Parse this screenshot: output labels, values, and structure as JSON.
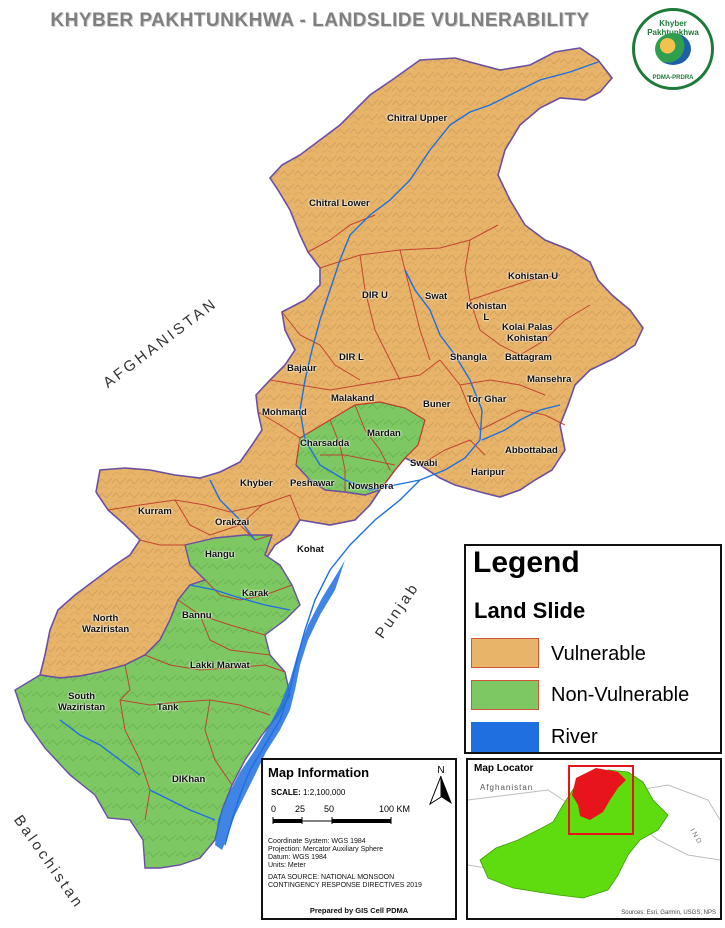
{
  "title": "KHYBER PAKHTUNKHWA - LANDSLIDE VULNERABILITY",
  "logo": {
    "top_text": "Khyber Pakhtunkhwa",
    "bottom_text": "PDMA-PRDRA"
  },
  "regions": {
    "afghanistan": "AFGHANISTAN",
    "punjab": "Punjab",
    "balochistan": "Balochistan"
  },
  "districts": {
    "chitral_upper": "Chitral Upper",
    "chitral_lower": "Chitral Lower",
    "kohistan_u": "Kohistan U",
    "kohistan_l": "Kohistan\nL",
    "dir_u": "DIR U",
    "swat": "Swat",
    "kolai_palas": "Kolai Palas\nKohistan",
    "battagram": "Battagram",
    "shangla": "Shangla",
    "mansehra": "Mansehra",
    "bajaur": "Bajaur",
    "dir_l": "DIR L",
    "malakand": "Malakand",
    "buner": "Buner",
    "tor_ghar": "Tor Ghar",
    "mohmand": "Mohmand",
    "mardan": "Mardan",
    "charsadda": "Charsadda",
    "abbottabad": "Abbottabad",
    "swabi": "Swabi",
    "haripur": "Haripur",
    "khyber": "Khyber",
    "peshawar": "Peshawar",
    "nowshera": "Nowshera",
    "kurram": "Kurram",
    "orakzai": "Orakzai",
    "hangu": "Hangu",
    "kohat": "Kohat",
    "karak": "Karak",
    "north_waziristan": "North\nWaziristan",
    "bannu": "Bannu",
    "lakki_marwat": "Lakki Marwat",
    "south_waziristan": "South\nWaziristan",
    "tank": "Tank",
    "dikhan": "DIKhan"
  },
  "legend": {
    "title": "Legend",
    "subtitle": "Land Slide",
    "items": [
      {
        "label": "Vulnerable",
        "color": "#e7b46a"
      },
      {
        "label": "Non-Vulnerable",
        "color": "#7dc862"
      },
      {
        "label": "River",
        "color": "#1e6fe0"
      }
    ]
  },
  "map_info": {
    "title": "Map Information",
    "scale_label": "SCALE:",
    "scale_value": "1:2,100,000",
    "scale_ticks": [
      "0",
      "25",
      "50",
      "100 KM"
    ],
    "lines": [
      "Coordinate System: WGS 1984",
      "Projection: Mercator Auxiliary Sphere",
      "Datum: WGS 1984",
      "Units: Meter"
    ],
    "data_source": [
      "DATA SOURCE: NATIONAL MONSOON",
      "CONTINGENCY RESPONSE DIRECTIVES 2019"
    ],
    "credit": "Prepared by GIS Cell PDMA",
    "north": "N"
  },
  "locator": {
    "title": "Map Locator",
    "country_label": "Afghanistan",
    "side_label": "I N D",
    "sources": "Sources: Esri, Garmin, USGS, NPS",
    "pakistan_color": "#5fdc0f",
    "kp_color": "#e8141b"
  },
  "colors": {
    "vulnerable": "#e7b46a",
    "non_vulnerable": "#7dc862",
    "district_border": "#c0392b",
    "boundary": "#6a4fa3",
    "river": "#1e6fe0"
  }
}
